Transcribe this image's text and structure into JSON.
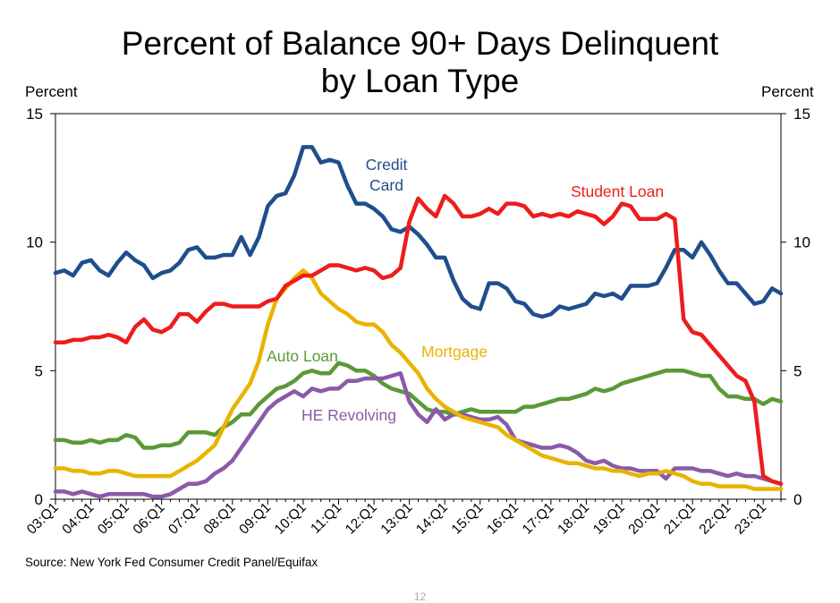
{
  "title_line1": "Percent of Balance 90+ Days Delinquent",
  "title_line2": "by Loan Type",
  "left_axis_unit": "Percent",
  "right_axis_unit": "Percent",
  "source": "Source: New York Fed Consumer Credit Panel/Equifax",
  "page_number": "12",
  "chart_data": {
    "type": "line",
    "title": "Percent of Balance 90+ Days Delinquent by Loan Type",
    "xlabel": "",
    "ylabel": "Percent",
    "ylim": [
      0,
      15
    ],
    "yticks": [
      0,
      5,
      10,
      15
    ],
    "grid": false,
    "x_start": "03:Q1",
    "x_end": "23:Q2",
    "tick_labels": [
      "03:Q1",
      "04:Q1",
      "05:Q1",
      "06:Q1",
      "07:Q1",
      "08:Q1",
      "09:Q1",
      "10:Q1",
      "11:Q1",
      "12:Q1",
      "13:Q1",
      "14:Q1",
      "15:Q1",
      "16:Q1",
      "17:Q1",
      "18:Q1",
      "19:Q1",
      "20:Q1",
      "21:Q1",
      "22:Q1",
      "23:Q1"
    ],
    "series": [
      {
        "name": "Credit Card",
        "label": "Credit\nCard",
        "color": "#1f4e8c",
        "values": [
          8.8,
          8.9,
          8.7,
          9.2,
          9.3,
          8.9,
          8.7,
          9.2,
          9.6,
          9.3,
          9.1,
          8.6,
          8.8,
          8.9,
          9.2,
          9.7,
          9.8,
          9.4,
          9.4,
          9.5,
          9.5,
          10.2,
          9.5,
          10.2,
          11.4,
          11.8,
          11.9,
          12.6,
          13.7,
          13.7,
          13.1,
          13.2,
          13.1,
          12.2,
          11.5,
          11.5,
          11.3,
          11.0,
          10.5,
          10.4,
          10.6,
          10.3,
          9.9,
          9.4,
          9.4,
          8.5,
          7.8,
          7.5,
          7.4,
          8.4,
          8.4,
          8.2,
          7.7,
          7.6,
          7.2,
          7.1,
          7.2,
          7.5,
          7.4,
          7.5,
          7.6,
          8.0,
          7.9,
          8.0,
          7.8,
          8.3,
          8.3,
          8.3,
          8.4,
          9.0,
          9.7,
          9.7,
          9.4,
          10.0,
          9.5,
          8.9,
          8.4,
          8.4,
          8.0,
          7.6,
          7.7,
          8.2,
          8.0
        ]
      },
      {
        "name": "Student Loan",
        "label": "Student Loan",
        "color": "#ee1c1c",
        "values": [
          6.1,
          6.1,
          6.2,
          6.2,
          6.3,
          6.3,
          6.4,
          6.3,
          6.1,
          6.7,
          7.0,
          6.6,
          6.5,
          6.7,
          7.2,
          7.2,
          6.9,
          7.3,
          7.6,
          7.6,
          7.5,
          7.5,
          7.5,
          7.5,
          7.7,
          7.8,
          8.3,
          8.5,
          8.7,
          8.7,
          8.9,
          9.1,
          9.1,
          9.0,
          8.9,
          9.0,
          8.9,
          8.6,
          8.7,
          9.0,
          10.8,
          11.7,
          11.3,
          11.0,
          11.8,
          11.5,
          11.0,
          11.0,
          11.1,
          11.3,
          11.1,
          11.5,
          11.5,
          11.4,
          11.0,
          11.1,
          11.0,
          11.1,
          11.0,
          11.2,
          11.1,
          11.0,
          10.7,
          11.0,
          11.5,
          11.4,
          10.9,
          10.9,
          10.9,
          11.1,
          10.9,
          7.0,
          6.5,
          6.4,
          6.0,
          5.6,
          5.2,
          4.8,
          4.6,
          3.8,
          0.9,
          0.7,
          0.6
        ]
      },
      {
        "name": "Auto Loan",
        "label": "Auto Loan",
        "color": "#5a9a36",
        "values": [
          2.3,
          2.3,
          2.2,
          2.2,
          2.3,
          2.2,
          2.3,
          2.3,
          2.5,
          2.4,
          2.0,
          2.0,
          2.1,
          2.1,
          2.2,
          2.6,
          2.6,
          2.6,
          2.5,
          2.8,
          3.0,
          3.3,
          3.3,
          3.7,
          4.0,
          4.3,
          4.4,
          4.6,
          4.9,
          5.0,
          4.9,
          4.9,
          5.3,
          5.2,
          5.0,
          5.0,
          4.8,
          4.5,
          4.3,
          4.2,
          4.1,
          3.8,
          3.5,
          3.4,
          3.4,
          3.3,
          3.4,
          3.5,
          3.4,
          3.4,
          3.4,
          3.4,
          3.4,
          3.6,
          3.6,
          3.7,
          3.8,
          3.9,
          3.9,
          4.0,
          4.1,
          4.3,
          4.2,
          4.3,
          4.5,
          4.6,
          4.7,
          4.8,
          4.9,
          5.0,
          5.0,
          5.0,
          4.9,
          4.8,
          4.8,
          4.3,
          4.0,
          4.0,
          3.9,
          3.9,
          3.7,
          3.9,
          3.8
        ]
      },
      {
        "name": "Mortgage",
        "label": "Mortgage",
        "color": "#e8b400",
        "values": [
          1.2,
          1.2,
          1.1,
          1.1,
          1.0,
          1.0,
          1.1,
          1.1,
          1.0,
          0.9,
          0.9,
          0.9,
          0.9,
          0.9,
          1.1,
          1.3,
          1.5,
          1.8,
          2.1,
          2.8,
          3.5,
          4.0,
          4.5,
          5.4,
          6.8,
          7.8,
          8.2,
          8.6,
          8.9,
          8.6,
          8.0,
          7.7,
          7.4,
          7.2,
          6.9,
          6.8,
          6.8,
          6.5,
          6.0,
          5.7,
          5.3,
          4.9,
          4.3,
          3.9,
          3.6,
          3.4,
          3.2,
          3.1,
          3.0,
          2.9,
          2.8,
          2.5,
          2.3,
          2.1,
          1.9,
          1.7,
          1.6,
          1.5,
          1.4,
          1.4,
          1.3,
          1.2,
          1.2,
          1.1,
          1.1,
          1.0,
          0.9,
          1.0,
          1.0,
          1.1,
          1.0,
          0.9,
          0.7,
          0.6,
          0.6,
          0.5,
          0.5,
          0.5,
          0.5,
          0.4,
          0.4,
          0.4,
          0.4
        ]
      },
      {
        "name": "HE Revolving",
        "label": "HE Revolving",
        "color": "#8a5aa8",
        "values": [
          0.3,
          0.3,
          0.2,
          0.3,
          0.2,
          0.1,
          0.2,
          0.2,
          0.2,
          0.2,
          0.2,
          0.1,
          0.1,
          0.2,
          0.4,
          0.6,
          0.6,
          0.7,
          1.0,
          1.2,
          1.5,
          2.0,
          2.5,
          3.0,
          3.5,
          3.8,
          4.0,
          4.2,
          4.0,
          4.3,
          4.2,
          4.3,
          4.3,
          4.6,
          4.6,
          4.7,
          4.7,
          4.7,
          4.8,
          4.9,
          3.8,
          3.3,
          3.0,
          3.5,
          3.1,
          3.3,
          3.3,
          3.2,
          3.1,
          3.1,
          3.2,
          2.9,
          2.3,
          2.2,
          2.1,
          2.0,
          2.0,
          2.1,
          2.0,
          1.8,
          1.5,
          1.4,
          1.5,
          1.3,
          1.2,
          1.2,
          1.1,
          1.1,
          1.1,
          0.8,
          1.2,
          1.2,
          1.2,
          1.1,
          1.1,
          1.0,
          0.9,
          1.0,
          0.9,
          0.9,
          0.8,
          0.7,
          0.6
        ]
      }
    ]
  }
}
